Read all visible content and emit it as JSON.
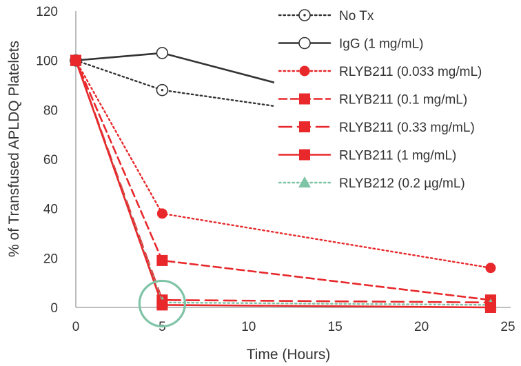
{
  "chart_data": {
    "type": "line",
    "title": "",
    "xlabel": "Time (Hours)",
    "ylabel": "% of Transfused APLDQ Platelets",
    "xlim": [
      0,
      25
    ],
    "ylim": [
      0,
      120
    ],
    "xticks": [
      "0",
      "5",
      "10",
      "15",
      "20",
      "25"
    ],
    "yticks": [
      "0",
      "20",
      "40",
      "60",
      "80",
      "100",
      "120"
    ],
    "grid": false,
    "legend_position": "top-right",
    "series": [
      {
        "name": "No Tx",
        "color": "#333333",
        "line": "dotted",
        "marker": "open-circle-dot",
        "x": [
          0,
          5,
          24
        ],
        "y": [
          100,
          88,
          69
        ]
      },
      {
        "name": "IgG (1 mg/mL)",
        "color": "#333333",
        "line": "solid",
        "marker": "open-circle",
        "x": [
          0,
          5,
          24
        ],
        "y": [
          100,
          103,
          68
        ]
      },
      {
        "name": "RLYB211 (0.033 mg/mL)",
        "color": "#e8282b",
        "line": "dotted",
        "marker": "filled-circle",
        "x": [
          0,
          5,
          24
        ],
        "y": [
          100,
          38,
          16
        ]
      },
      {
        "name": "RLYB211 (0.1 mg/mL)",
        "color": "#e8282b",
        "line": "dashed",
        "marker": "filled-square",
        "x": [
          0,
          5,
          24
        ],
        "y": [
          100,
          19,
          3
        ]
      },
      {
        "name": "RLYB211 (0.33 mg/mL)",
        "color": "#e8282b",
        "line": "long-dashed",
        "marker": "filled-square",
        "x": [
          0,
          5,
          24
        ],
        "y": [
          100,
          3,
          2
        ]
      },
      {
        "name": "RLYB211 (1 mg/mL)",
        "color": "#e8282b",
        "line": "solid",
        "marker": "filled-square",
        "x": [
          0,
          5,
          24
        ],
        "y": [
          100,
          1,
          0
        ]
      },
      {
        "name": "RLYB212 (0.2 µg/mL)",
        "color": "#7ec4a6",
        "line": "dotted",
        "marker": "filled-triangle",
        "x": [
          0,
          5,
          24
        ],
        "y": [
          100,
          2,
          1
        ]
      }
    ],
    "annotation": {
      "type": "circle-highlight",
      "x": 5,
      "y": 1,
      "color": "#7ec4a6"
    }
  }
}
